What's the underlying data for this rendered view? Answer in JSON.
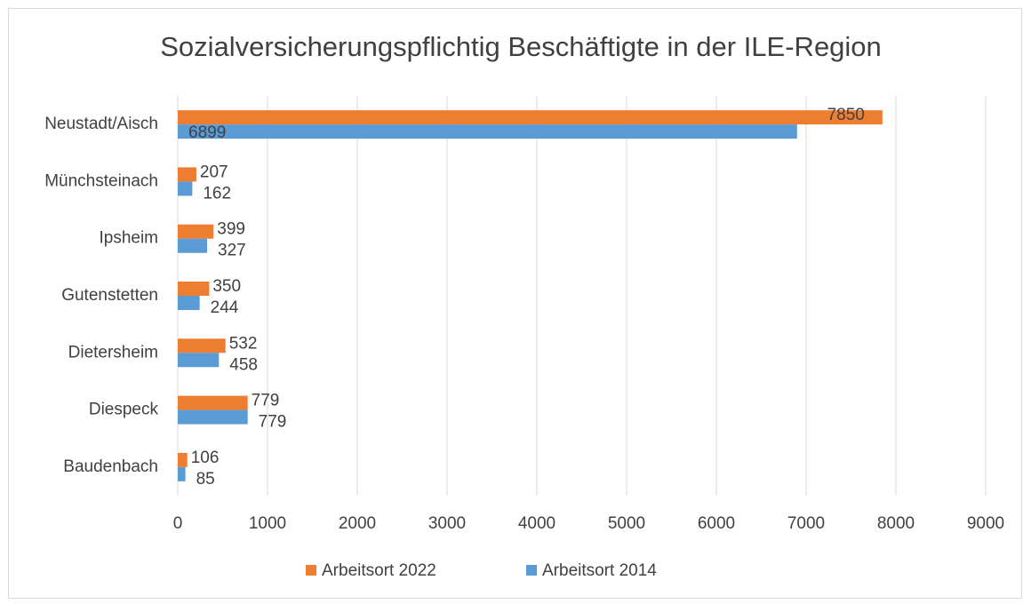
{
  "chart_data": {
    "type": "hbar",
    "title": "Sozialversicherungspflichtig Beschäftigte in der ILE-Region",
    "categories": [
      "Neustadt/Aisch",
      "Münchsteinach",
      "Ipsheim",
      "Gutenstetten",
      "Dietersheim",
      "Diespeck",
      "Baudenbach"
    ],
    "series": [
      {
        "name": "Arbeitsort 2022",
        "color": "#ed7d31",
        "values": [
          7850,
          207,
          399,
          350,
          532,
          779,
          106
        ]
      },
      {
        "name": "Arbeitsort 2014",
        "color": "#5b9bd5",
        "values": [
          6899,
          162,
          327,
          244,
          458,
          779,
          85
        ]
      }
    ],
    "xlim": [
      0,
      9000
    ],
    "xticks": [
      0,
      1000,
      2000,
      3000,
      4000,
      5000,
      6000,
      7000,
      8000,
      9000
    ],
    "grid": true,
    "legend": "bottom"
  }
}
